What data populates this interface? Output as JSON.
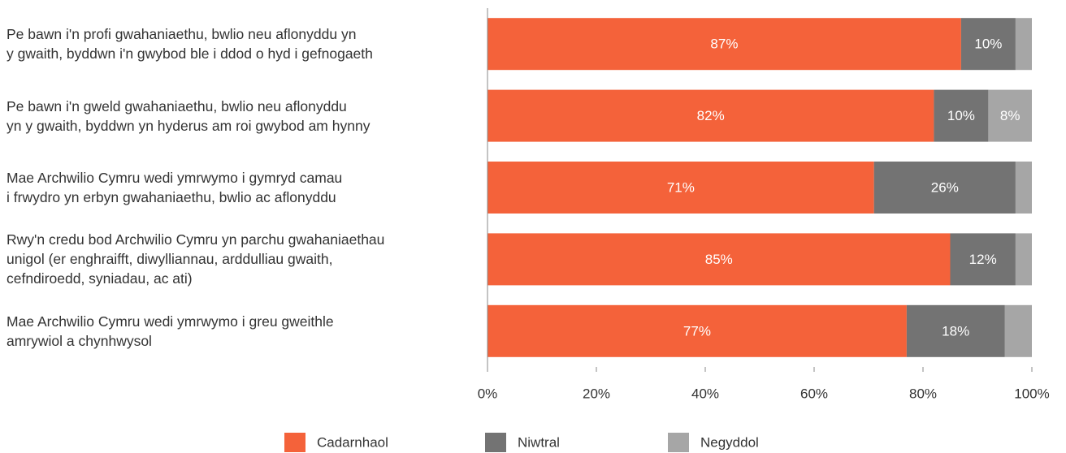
{
  "chart_data": {
    "type": "stacked_barh",
    "categories": [
      "Pe bawn i'n profi gwahaniaethu, bwlio neu aflonyddu yn\ny gwaith, byddwn i'n gwybod ble i ddod o hyd i gefnogaeth",
      "Pe bawn i'n gweld gwahaniaethu, bwlio neu aflonyddu\nyn y gwaith, byddwn yn hyderus am roi gwybod am hynny",
      "Mae Archwilio Cymru wedi ymrwymo i gymryd camau\ni frwydro yn erbyn gwahaniaethu, bwlio ac aflonyddu",
      "Rwy'n credu bod Archwilio Cymru yn parchu gwahaniaethau\nunigol (er enghraifft, diwylliannau, arddulliau gwaith,\ncefndiroedd, syniadau, ac ati)",
      "Mae Archwilio Cymru wedi ymrwymo i greu gweithle\namrywiol a chynhwysol"
    ],
    "series": [
      {
        "name": "Cadarnhaol",
        "color": "#f4623a",
        "values": [
          87,
          82,
          71,
          85,
          77
        ],
        "value_labels": [
          "87%",
          "82%",
          "71%",
          "85%",
          "77%"
        ]
      },
      {
        "name": "Niwtral",
        "color": "#737373",
        "values": [
          10,
          10,
          26,
          12,
          18
        ],
        "value_labels": [
          "10%",
          "10%",
          "26%",
          "12%",
          "18%"
        ]
      },
      {
        "name": "Negyddol",
        "color": "#a6a6a6",
        "values": [
          3,
          8,
          3,
          3,
          5
        ],
        "value_labels": [
          null,
          "8%",
          null,
          null,
          null
        ]
      }
    ],
    "xlim": [
      0,
      100
    ],
    "xticks": [
      {
        "value": 0,
        "label": "0%"
      },
      {
        "value": 20,
        "label": "20%"
      },
      {
        "value": 40,
        "label": "40%"
      },
      {
        "value": 60,
        "label": "60%"
      },
      {
        "value": 80,
        "label": "80%"
      },
      {
        "value": 100,
        "label": "100%"
      }
    ],
    "legend": "bottom"
  }
}
